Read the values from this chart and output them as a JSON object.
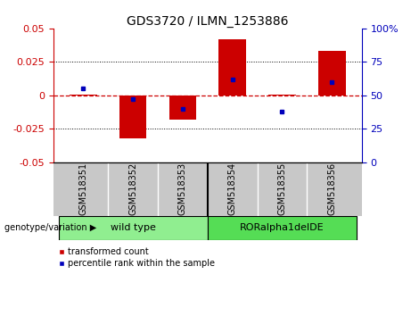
{
  "title": "GDS3720 / ILMN_1253886",
  "samples": [
    "GSM518351",
    "GSM518352",
    "GSM518353",
    "GSM518354",
    "GSM518355",
    "GSM518356"
  ],
  "red_bars": [
    0.0005,
    -0.032,
    -0.018,
    0.042,
    0.0003,
    0.033
  ],
  "blue_dots_pct": [
    55,
    47,
    40,
    62,
    38,
    60
  ],
  "ylim_left": [
    -0.05,
    0.05
  ],
  "ylim_right": [
    0,
    100
  ],
  "yticks_left": [
    -0.05,
    -0.025,
    0,
    0.025,
    0.05
  ],
  "yticks_right": [
    0,
    25,
    50,
    75,
    100
  ],
  "groups": [
    {
      "label": "wild type",
      "indices": [
        0,
        1,
        2
      ],
      "color": "#90ee90"
    },
    {
      "label": "RORalpha1delDE",
      "indices": [
        3,
        4,
        5
      ],
      "color": "#55dd55"
    }
  ],
  "sample_bg_color": "#c8c8c8",
  "red_color": "#cc0000",
  "blue_color": "#0000bb",
  "hline_color": "#cc0000",
  "grid_color": "#000000",
  "bg_color": "#ffffff",
  "left_tick_color": "#cc0000",
  "right_tick_color": "#0000bb",
  "legend_red_label": "transformed count",
  "legend_blue_label": "percentile rank within the sample",
  "bar_width": 0.55,
  "title_fontsize": 10,
  "tick_fontsize": 8,
  "sample_fontsize": 7,
  "group_fontsize": 8,
  "legend_fontsize": 7,
  "geno_fontsize": 7
}
